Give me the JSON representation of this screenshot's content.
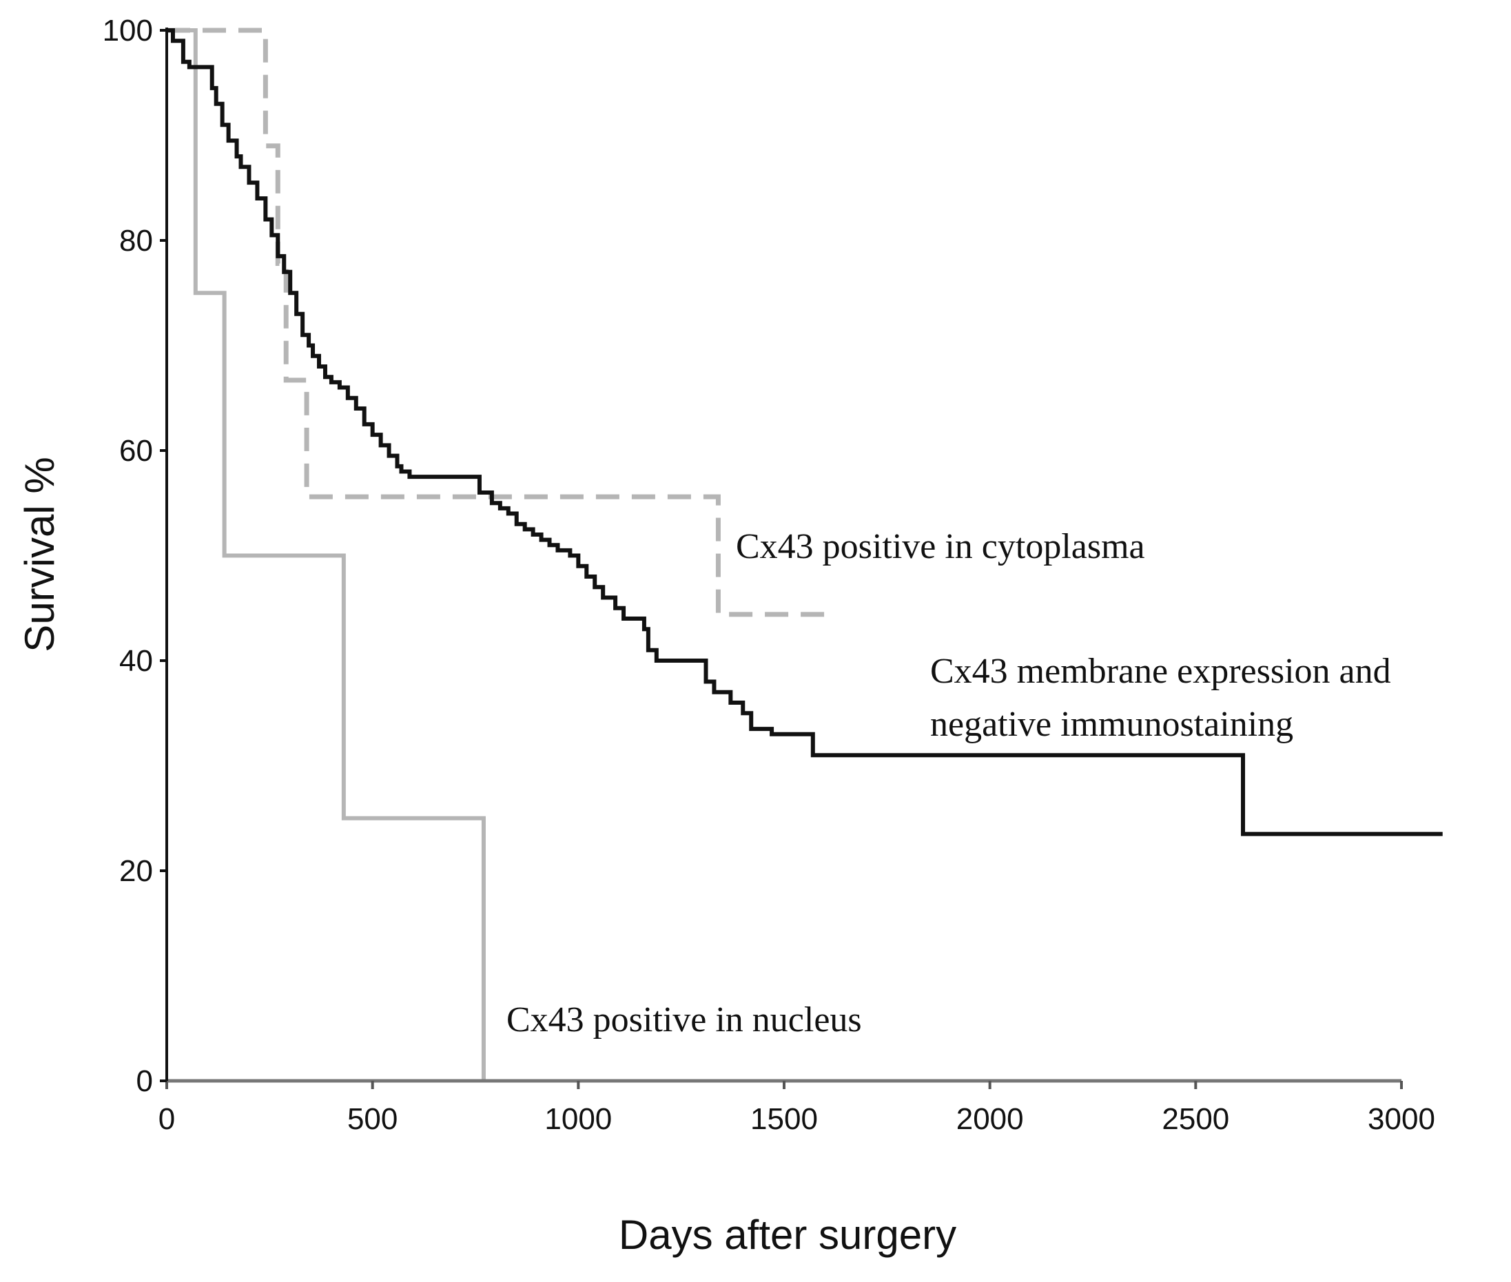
{
  "chart_data": {
    "type": "line",
    "subtype": "kaplan-meier step",
    "title": "",
    "xlabel": "Days after surgery",
    "ylabel": "Survival %",
    "xlim": [
      0,
      3000
    ],
    "ylim": [
      0,
      100
    ],
    "xticks": [
      0,
      500,
      1000,
      1500,
      2000,
      2500,
      3000
    ],
    "yticks": [
      0,
      20,
      40,
      60,
      80,
      100
    ],
    "grid": false,
    "series": [
      {
        "name": "Cx43 membrane expression and negative immunostaining",
        "label_lines": [
          "Cx43 membrane expression and",
          "negative immunostaining"
        ],
        "color": "#111111",
        "style": "solid",
        "x": [
          0,
          15,
          40,
          55,
          110,
          120,
          135,
          150,
          170,
          180,
          200,
          220,
          240,
          255,
          270,
          285,
          300,
          315,
          330,
          345,
          355,
          370,
          385,
          400,
          420,
          440,
          460,
          480,
          500,
          520,
          540,
          560,
          570,
          590,
          610,
          630,
          650,
          680,
          710,
          760,
          790,
          810,
          830,
          850,
          870,
          890,
          910,
          930,
          950,
          980,
          1000,
          1020,
          1040,
          1060,
          1090,
          1110,
          1160,
          1170,
          1190,
          1210,
          1240,
          1280,
          1310,
          1330,
          1370,
          1400,
          1420,
          1470,
          1570,
          1580,
          2610,
          2615,
          3100
        ],
        "y": [
          100,
          99,
          97,
          96.5,
          94.5,
          93,
          91,
          89.5,
          88,
          87,
          85.5,
          84,
          82,
          80.5,
          78.5,
          77,
          75,
          73,
          71,
          70,
          69,
          68,
          67,
          66.5,
          66,
          65,
          64,
          62.5,
          61.5,
          60.5,
          59.5,
          58.5,
          58,
          57.5,
          57.5,
          57.5,
          57.5,
          57.5,
          57.5,
          56,
          55,
          54.5,
          54,
          53,
          52.5,
          52,
          51.5,
          51,
          50.5,
          50,
          49,
          48,
          47,
          46,
          45,
          44,
          43,
          41,
          40,
          40,
          40,
          40,
          38,
          37,
          36,
          35,
          33.5,
          33,
          31,
          31,
          31,
          23.5,
          23.5
        ]
      },
      {
        "name": "Cx43 positive in cytoplasma",
        "label_lines": [
          "Cx43 positive in cytoplasma"
        ],
        "color": "#b5b5b5",
        "style": "dashed",
        "x": [
          0,
          240,
          270,
          290,
          340,
          1340,
          1620
        ],
        "y": [
          100,
          89,
          77.8,
          66.7,
          55.6,
          44.4,
          44.4
        ]
      },
      {
        "name": "Cx43 positive in nucleus",
        "label_lines": [
          "Cx43 positive in nucleus"
        ],
        "color": "#b5b5b5",
        "style": "solid",
        "x": [
          0,
          70,
          140,
          430,
          770
        ],
        "y": [
          100,
          75,
          50,
          25,
          0
        ]
      }
    ]
  }
}
